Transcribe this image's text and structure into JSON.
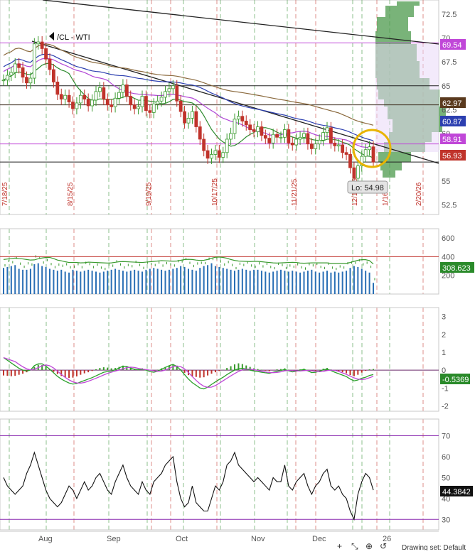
{
  "symbol_label": "/CL - WTI",
  "low_callout": "Lo: 54.98",
  "drawing_tools_text": "Drawing set: Default",
  "colors": {
    "up": "#3a9a2e",
    "down": "#c0332b",
    "sma_green": "#2e8b2e",
    "sma_purple": "#b045d6",
    "sma_blue": "#2c3fb0",
    "sma_brown": "#8b6a3e",
    "trendline": "#222222",
    "profile": "#4c9a4c",
    "highlight_ring": "#e8b400",
    "volume_bar": "#2a6fb5",
    "macd_line": "#2ba02b",
    "signal_line": "#c047d8",
    "rsi_line": "#111111"
  },
  "chart_data": [
    {
      "type": "line",
      "title": "/CL - WTI",
      "panel": "price",
      "ylim": [
        51.5,
        74
      ],
      "yticks": [
        "72.5",
        "70",
        "67.5",
        "65",
        "62.5",
        "60",
        "57.5",
        "55",
        "52.5"
      ],
      "xlabels": [
        "Aug",
        "Sep",
        "Oct",
        "Nov",
        "Dec",
        "26"
      ],
      "date_markers": [
        "7/18/25",
        "8/15/25",
        "9/19/25",
        "10/17/25",
        "11/21/25",
        "12/19/25",
        "1/16/26",
        "2/20/26"
      ],
      "price_tags": [
        {
          "label": "69.54",
          "color": "#c047d8"
        },
        {
          "label": "62.97",
          "color": "#5a3a1e"
        },
        {
          "label": "60.87",
          "color": "#2c3fb0"
        },
        {
          "label": "58.91",
          "color": "#c047d8"
        },
        {
          "label": "56.93",
          "color": "#c0332b"
        }
      ],
      "close": [
        65.6,
        66.1,
        66.4,
        67.3,
        66.9,
        65.9,
        65.3,
        65.8,
        69.4,
        69.6,
        68.9,
        67.8,
        66.7,
        65.4,
        64.1,
        63.6,
        64.0,
        63.3,
        62.6,
        63.2,
        64.0,
        63.6,
        62.9,
        63.5,
        64.4,
        64.8,
        63.6,
        63.0,
        62.8,
        63.7,
        64.3,
        65.1,
        63.9,
        63.0,
        62.6,
        62.8,
        63.9,
        62.4,
        62.2,
        63.1,
        63.4,
        63.8,
        64.4,
        64.7,
        65.0,
        63.4,
        62.3,
        61.1,
        61.6,
        62.3,
        60.7,
        59.4,
        58.2,
        57.4,
        57.8,
        58.2,
        57.5,
        58.0,
        59.4,
        60.0,
        61.5,
        61.8,
        61.3,
        60.9,
        60.4,
        60.2,
        60.7,
        59.8,
        59.5,
        59.0,
        59.9,
        59.6,
        59.6,
        60.4,
        59.0,
        58.8,
        59.4,
        59.6,
        60.0,
        58.9,
        58.4,
        58.9,
        59.3,
        60.1,
        60.6,
        59.0,
        58.7,
        58.8,
        58.0,
        57.8,
        56.4,
        55.3,
        56.6,
        57.6,
        58.3,
        58.6,
        57.0
      ],
      "volume": [
        280,
        290,
        300,
        310,
        270,
        260,
        260,
        270,
        320,
        330,
        300,
        290,
        270,
        260,
        250,
        260,
        240,
        230,
        260,
        250,
        240,
        250,
        260,
        250,
        240,
        230,
        240,
        250,
        260,
        270,
        260,
        250,
        240,
        250,
        260,
        250,
        240,
        260,
        270,
        280,
        270,
        260,
        250,
        260,
        270,
        280,
        300,
        290,
        270,
        260,
        250,
        280,
        300,
        310,
        330,
        300,
        290,
        280,
        270,
        260,
        250,
        260,
        270,
        260,
        250,
        260,
        260,
        250,
        240,
        230,
        240,
        250,
        260,
        250,
        240,
        250,
        240,
        230,
        240,
        250,
        260,
        240,
        230,
        240,
        250,
        230,
        240,
        230,
        240,
        250,
        280,
        300,
        290,
        270,
        250,
        230,
        120
      ],
      "macd_hist": [
        -0.3,
        -0.32,
        -0.34,
        -0.32,
        -0.26,
        -0.2,
        -0.12,
        0.0,
        0.18,
        0.3,
        0.28,
        0.18,
        0.05,
        -0.1,
        -0.22,
        -0.33,
        -0.4,
        -0.44,
        -0.42,
        -0.35,
        -0.26,
        -0.18,
        -0.12,
        -0.05,
        0.05,
        0.12,
        0.16,
        0.14,
        0.1,
        0.12,
        0.18,
        0.25,
        0.22,
        0.14,
        0.08,
        0.06,
        0.1,
        0.05,
        -0.02,
        -0.04,
        0.02,
        0.1,
        0.18,
        0.26,
        0.32,
        0.2,
        0.04,
        -0.15,
        -0.28,
        -0.34,
        -0.38,
        -0.42,
        -0.4,
        -0.3,
        -0.2,
        -0.12,
        -0.05,
        0.02,
        0.12,
        0.22,
        0.32,
        0.38,
        0.34,
        0.26,
        0.18,
        0.1,
        0.06,
        0.02,
        -0.03,
        -0.06,
        0.0,
        0.04,
        0.06,
        0.1,
        0.02,
        -0.03,
        0.0,
        0.04,
        0.08,
        0.02,
        -0.06,
        -0.04,
        0.02,
        0.08,
        0.12,
        0.04,
        -0.04,
        -0.08,
        -0.12,
        -0.18,
        -0.28,
        -0.34,
        -0.26,
        -0.14,
        -0.04,
        0.04,
        0.06
      ],
      "macd_line": [
        0.7,
        0.55,
        0.4,
        0.25,
        0.1,
        0.0,
        -0.05,
        0.0,
        0.25,
        0.35,
        0.35,
        0.22,
        0.05,
        -0.15,
        -0.35,
        -0.5,
        -0.62,
        -0.72,
        -0.78,
        -0.75,
        -0.66,
        -0.58,
        -0.5,
        -0.42,
        -0.32,
        -0.22,
        -0.12,
        -0.08,
        -0.05,
        0.02,
        0.12,
        0.22,
        0.2,
        0.12,
        0.05,
        0.02,
        0.05,
        0.0,
        -0.08,
        -0.12,
        -0.06,
        0.05,
        0.15,
        0.25,
        0.32,
        0.2,
        0.0,
        -0.25,
        -0.5,
        -0.7,
        -0.85,
        -1.0,
        -1.05,
        -0.95,
        -0.8,
        -0.66,
        -0.52,
        -0.4,
        -0.25,
        -0.12,
        0.0,
        0.08,
        0.1,
        0.06,
        0.0,
        -0.05,
        -0.08,
        -0.12,
        -0.15,
        -0.18,
        -0.12,
        -0.06,
        -0.02,
        0.04,
        -0.04,
        -0.1,
        -0.06,
        0.0,
        0.04,
        -0.04,
        -0.14,
        -0.12,
        -0.06,
        0.02,
        0.06,
        -0.02,
        -0.12,
        -0.2,
        -0.28,
        -0.36,
        -0.5,
        -0.6,
        -0.55,
        -0.45,
        -0.4,
        -0.3,
        -0.25
      ],
      "rsi": [
        50,
        46,
        44,
        42,
        44,
        46,
        52,
        56,
        62,
        56,
        50,
        44,
        40,
        38,
        36,
        38,
        42,
        46,
        44,
        40,
        44,
        48,
        44,
        46,
        50,
        52,
        48,
        44,
        42,
        48,
        52,
        56,
        50,
        46,
        44,
        42,
        48,
        44,
        42,
        48,
        50,
        52,
        56,
        58,
        60,
        48,
        40,
        36,
        38,
        46,
        38,
        36,
        34,
        34,
        40,
        46,
        44,
        48,
        56,
        58,
        62,
        56,
        54,
        52,
        50,
        48,
        50,
        48,
        46,
        44,
        50,
        48,
        48,
        56,
        46,
        44,
        48,
        50,
        52,
        46,
        42,
        46,
        48,
        52,
        54,
        46,
        44,
        46,
        42,
        40,
        34,
        30,
        42,
        48,
        52,
        50,
        44
      ],
      "rsi_levels": [
        "70",
        "60",
        "50",
        "40",
        "30"
      ],
      "macd_ticks": [
        "3",
        "2",
        "1",
        "0",
        "-1",
        "-2"
      ],
      "volume_ticks": [
        "600",
        "400",
        "200"
      ],
      "volume_tag": "308.623",
      "macd_tag": "-0.5369",
      "rsi_tag": "44.3842"
    }
  ]
}
